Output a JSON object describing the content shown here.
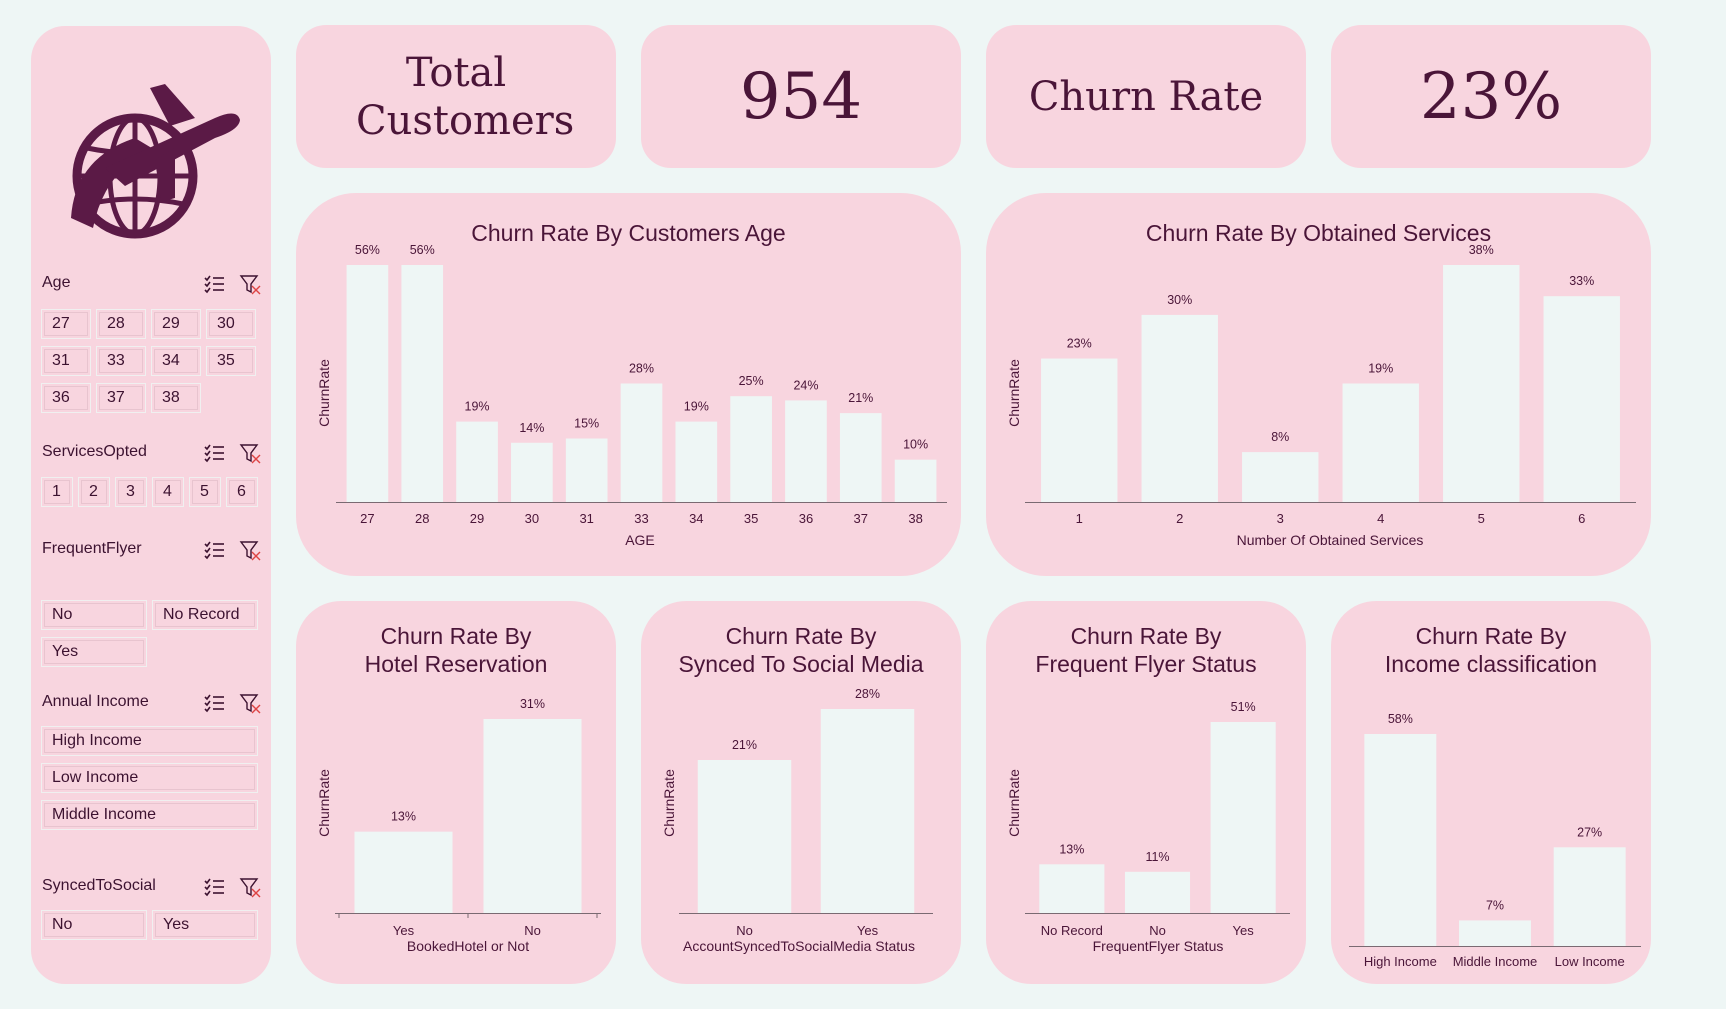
{
  "kpis": {
    "total_label": "Total Customers",
    "total_value": "954",
    "churn_label": "Churn Rate",
    "churn_value": "23%"
  },
  "icons": {
    "logo": "airplane-globe-icon",
    "multi_select": "multi-select-icon",
    "clear_filter": "clear-filter-icon"
  },
  "colors": {
    "panel": "#f8d5df",
    "background": "#eef6f5",
    "bar": "#eef6f5",
    "text": "#4a1538",
    "logo": "#5b1a46"
  },
  "slicers": {
    "age": {
      "title": "Age",
      "items": [
        "27",
        "28",
        "29",
        "30",
        "31",
        "33",
        "34",
        "35",
        "36",
        "37",
        "38"
      ]
    },
    "services": {
      "title": "ServicesOpted",
      "items": [
        "1",
        "2",
        "3",
        "4",
        "5",
        "6"
      ]
    },
    "frequent_flyer": {
      "title": "FrequentFlyer",
      "items": [
        "No",
        "No Record",
        "Yes"
      ]
    },
    "annual_income": {
      "title": "Annual Income",
      "items": [
        "High Income",
        "Low Income",
        "Middle Income"
      ]
    },
    "synced": {
      "title": "SyncedToSocial",
      "items": [
        "No",
        "Yes"
      ]
    }
  },
  "chart_data": [
    {
      "id": "age",
      "type": "bar",
      "title": "Churn Rate By Customers Age",
      "xlabel": "AGE",
      "ylabel": "ChurnRate",
      "categories": [
        "27",
        "28",
        "29",
        "30",
        "31",
        "33",
        "34",
        "35",
        "36",
        "37",
        "38"
      ],
      "values": [
        56,
        56,
        19,
        14,
        15,
        28,
        19,
        25,
        24,
        21,
        10
      ],
      "labels": [
        "56%",
        "56%",
        "19%",
        "14%",
        "15%",
        "28%",
        "19%",
        "25%",
        "24%",
        "21%",
        "10%"
      ],
      "ylim": [
        0,
        56
      ]
    },
    {
      "id": "services",
      "type": "bar",
      "title": "Churn Rate By Obtained Services",
      "xlabel": "Number Of Obtained Services",
      "ylabel": "ChurnRate",
      "categories": [
        "1",
        "2",
        "3",
        "4",
        "5",
        "6"
      ],
      "values": [
        23,
        30,
        8,
        19,
        38,
        33
      ],
      "labels": [
        "23%",
        "30%",
        "8%",
        "19%",
        "38%",
        "33%"
      ],
      "ylim": [
        0,
        38
      ]
    },
    {
      "id": "hotel",
      "type": "bar",
      "title": [
        "Churn Rate By",
        "Hotel Reservation"
      ],
      "xlabel": "BookedHotel or Not",
      "ylabel": "ChurnRate",
      "categories": [
        "Yes",
        "No"
      ],
      "values": [
        13,
        31
      ],
      "labels": [
        "13%",
        "31%"
      ],
      "ylim": [
        0,
        31
      ]
    },
    {
      "id": "social",
      "type": "bar",
      "title": [
        "Churn Rate By",
        "Synced To Social Media"
      ],
      "xlabel": "AccountSyncedToSocialMedia Status",
      "ylabel": "ChurnRate",
      "categories": [
        "No",
        "Yes"
      ],
      "values": [
        21,
        28
      ],
      "labels": [
        "21%",
        "28%"
      ],
      "ylim": [
        0,
        28
      ]
    },
    {
      "id": "flyer",
      "type": "bar",
      "title": [
        "Churn Rate By",
        "Frequent Flyer Status"
      ],
      "xlabel": "FrequentFlyer Status",
      "ylabel": "ChurnRate",
      "categories": [
        "No Record",
        "No",
        "Yes"
      ],
      "values": [
        13,
        11,
        51
      ],
      "labels": [
        "13%",
        "11%",
        "51%"
      ],
      "ylim": [
        0,
        51
      ]
    },
    {
      "id": "income",
      "type": "bar",
      "title": [
        "Churn Rate By",
        "Income classification"
      ],
      "xlabel": "",
      "ylabel": "",
      "categories": [
        "High Income",
        "Middle Income",
        "Low Income"
      ],
      "values": [
        58,
        7,
        27
      ],
      "labels": [
        "58%",
        "7%",
        "27%"
      ],
      "ylim": [
        0,
        58
      ]
    }
  ]
}
